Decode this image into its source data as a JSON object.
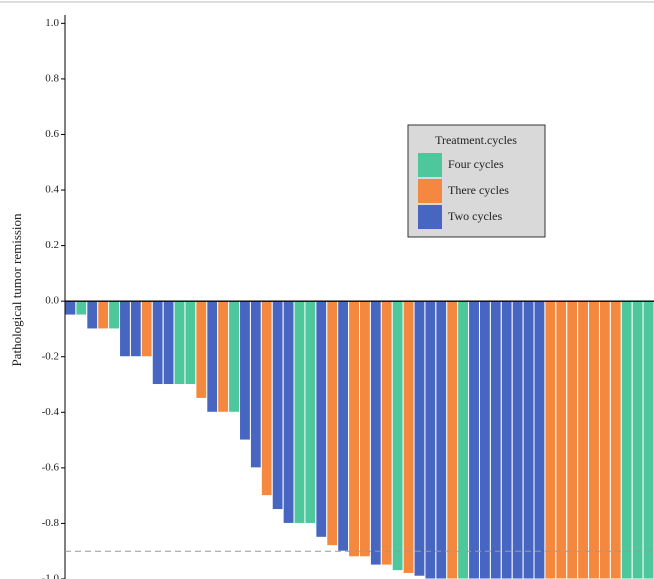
{
  "chart_data": {
    "type": "waterfall",
    "y_label": "Pathological tumor remission",
    "ylim": [
      -1.0,
      1.03
    ],
    "yticks": [
      {
        "value": 1.0,
        "label": "1.0"
      },
      {
        "value": 0.8,
        "label": "0.8"
      },
      {
        "value": 0.6,
        "label": "0.6"
      },
      {
        "value": 0.4,
        "label": "0.4"
      },
      {
        "value": 0.2,
        "label": "0.2"
      },
      {
        "value": 0.0,
        "label": "0.0"
      },
      {
        "value": -0.2,
        "label": "-0.2"
      },
      {
        "value": -0.4,
        "label": "-0.4"
      },
      {
        "value": -0.6,
        "label": "-0.6"
      },
      {
        "value": -0.8,
        "label": "-0.8"
      },
      {
        "value": -1.0,
        "label": "-1.0"
      }
    ],
    "reference_line": -0.9,
    "legend": {
      "title": "Treatment.cycles",
      "entries": [
        {
          "name": "Four cycles",
          "color": "#4dc79b"
        },
        {
          "name": "There cycles",
          "color": "#f5883f"
        },
        {
          "name": "Two cycles",
          "color": "#4766c2"
        }
      ]
    },
    "values": [
      -0.05,
      -0.05,
      -0.1,
      -0.1,
      -0.1,
      -0.2,
      -0.2,
      -0.2,
      -0.3,
      -0.3,
      -0.3,
      -0.3,
      -0.35,
      -0.4,
      -0.4,
      -0.4,
      -0.5,
      -0.6,
      -0.7,
      -0.75,
      -0.8,
      -0.8,
      -0.8,
      -0.85,
      -0.88,
      -0.9,
      -0.92,
      -0.92,
      -0.95,
      -0.95,
      -0.97,
      -0.98,
      -0.99,
      -1.0,
      -1.0,
      -1.0,
      -1.0,
      -1.0,
      -1.0,
      -1.0,
      -1.0,
      -1.0,
      -1.0,
      -1.0,
      -1.0,
      -1.0,
      -1.0,
      -1.0,
      -1.0,
      -1.0,
      -1.0,
      -1.0,
      -1.0,
      -1.0
    ],
    "bar_groups": [
      "Two cycles",
      "Four cycles",
      "Two cycles",
      "There cycles",
      "Four cycles",
      "Two cycles",
      "Two cycles",
      "There cycles",
      "Two cycles",
      "Two cycles",
      "Four cycles",
      "Four cycles",
      "There cycles",
      "Two cycles",
      "There cycles",
      "Four cycles",
      "Two cycles",
      "Two cycles",
      "There cycles",
      "Two cycles",
      "Two cycles",
      "Four cycles",
      "Four cycles",
      "Two cycles",
      "There cycles",
      "Two cycles",
      "There cycles",
      "There cycles",
      "Two cycles",
      "There cycles",
      "Four cycles",
      "There cycles",
      "Two cycles",
      "Two cycles",
      "Two cycles",
      "There cycles",
      "Four cycles",
      "Two cycles",
      "Two cycles",
      "Two cycles",
      "Two cycles",
      "Two cycles",
      "Two cycles",
      "Two cycles",
      "There cycles",
      "There cycles",
      "There cycles",
      "There cycles",
      "There cycles",
      "There cycles",
      "There cycles",
      "Four cycles",
      "Four cycles",
      "Four cycles"
    ]
  }
}
